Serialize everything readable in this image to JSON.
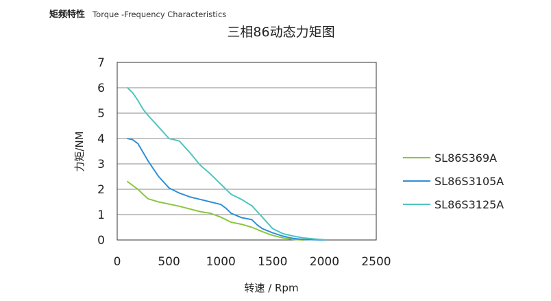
{
  "header": {
    "title_cn": "矩频特性",
    "title_en": "Torque -Frequency Characteristics"
  },
  "chart_data": {
    "type": "line",
    "title": "三相86动态力矩图",
    "xlabel": "转速 / Rpm",
    "ylabel": "力矩/NM",
    "xlim": [
      0,
      2500
    ],
    "ylim": [
      0,
      7
    ],
    "xticks": [
      0,
      500,
      1000,
      1500,
      2000,
      2500
    ],
    "yticks": [
      0,
      1,
      2,
      3,
      4,
      5,
      6,
      7
    ],
    "grid": "horizontal",
    "legend_position": "right",
    "series": [
      {
        "name": "SL86S369A",
        "color": "#8cc63f",
        "x": [
          100,
          200,
          250,
          300,
          400,
          600,
          800,
          900,
          1000,
          1100,
          1200,
          1300,
          1400,
          1500,
          1600,
          1700,
          1800
        ],
        "y": [
          2.3,
          2.0,
          1.8,
          1.62,
          1.5,
          1.33,
          1.12,
          1.05,
          0.9,
          0.7,
          0.62,
          0.5,
          0.33,
          0.18,
          0.08,
          0.02,
          0.0
        ]
      },
      {
        "name": "SL86S3105A",
        "color": "#2e8fd8",
        "x": [
          100,
          150,
          200,
          250,
          300,
          400,
          500,
          550,
          600,
          700,
          800,
          900,
          1000,
          1050,
          1100,
          1200,
          1300,
          1350,
          1400,
          1500,
          1600,
          1700,
          1800,
          1900,
          2000
        ],
        "y": [
          4.0,
          3.95,
          3.8,
          3.45,
          3.1,
          2.5,
          2.05,
          1.95,
          1.85,
          1.7,
          1.6,
          1.5,
          1.4,
          1.25,
          1.05,
          0.88,
          0.8,
          0.6,
          0.45,
          0.28,
          0.15,
          0.06,
          0.02,
          0.01,
          0.0
        ]
      },
      {
        "name": "SL86S3125A",
        "color": "#4fc4be",
        "x": [
          100,
          150,
          200,
          250,
          300,
          400,
          500,
          550,
          600,
          700,
          800,
          900,
          1000,
          1100,
          1200,
          1300,
          1400,
          1500,
          1600,
          1700,
          1800,
          1900,
          2000
        ],
        "y": [
          6.0,
          5.8,
          5.5,
          5.15,
          4.9,
          4.45,
          4.0,
          3.95,
          3.9,
          3.45,
          2.95,
          2.6,
          2.2,
          1.8,
          1.6,
          1.35,
          0.9,
          0.45,
          0.25,
          0.15,
          0.08,
          0.04,
          0.01
        ]
      }
    ]
  }
}
